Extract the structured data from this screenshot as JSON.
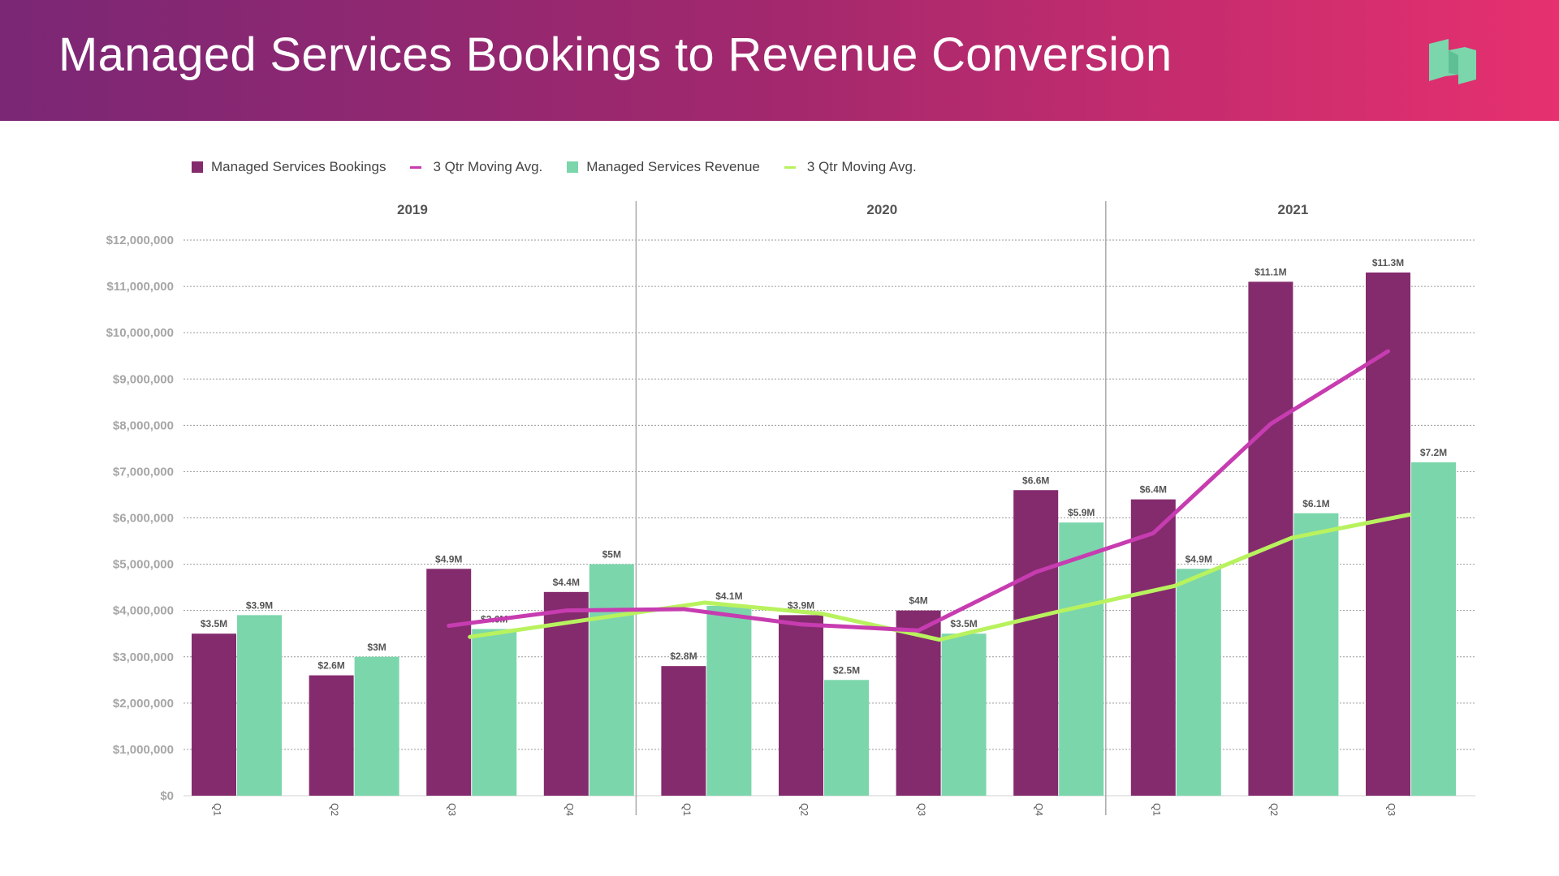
{
  "title": "Managed Services Bookings to Revenue Conversion",
  "logo_icon": "book-logo-icon",
  "colors": {
    "bookings": "#842b6e",
    "bookings_avg": "#c73cb0",
    "revenue": "#7bd6ac",
    "revenue_avg": "#b8f25e",
    "header_start": "#7b2775",
    "header_end": "#e6306f",
    "logo": "#7bd6ac"
  },
  "legend": [
    {
      "label": "Managed Services Bookings",
      "kind": "square",
      "color": "#842b6e"
    },
    {
      "label": "3 Qtr Moving Avg.",
      "kind": "line",
      "color": "#c73cb0"
    },
    {
      "label": "Managed Services Revenue",
      "kind": "square",
      "color": "#7bd6ac"
    },
    {
      "label": "3 Qtr Moving Avg.",
      "kind": "line",
      "color": "#b8f25e"
    }
  ],
  "chart_data": {
    "type": "bar",
    "groups": [
      {
        "label": "2019",
        "categories": [
          "Q1",
          "Q2",
          "Q3",
          "Q4"
        ]
      },
      {
        "label": "2020",
        "categories": [
          "Q1",
          "Q2",
          "Q3",
          "Q4"
        ]
      },
      {
        "label": "2021",
        "categories": [
          "Q1",
          "Q2",
          "Q3"
        ]
      }
    ],
    "categories": [
      "Q1",
      "Q2",
      "Q3",
      "Q4",
      "Q1",
      "Q2",
      "Q3",
      "Q4",
      "Q1",
      "Q2",
      "Q3"
    ],
    "ylim": [
      0,
      12000000
    ],
    "yticks": [
      {
        "value": 0,
        "label": "$0"
      },
      {
        "value": 1000000,
        "label": "$1,000,000"
      },
      {
        "value": 2000000,
        "label": "$2,000,000"
      },
      {
        "value": 3000000,
        "label": "$3,000,000"
      },
      {
        "value": 4000000,
        "label": "$4,000,000"
      },
      {
        "value": 5000000,
        "label": "$5,000,000"
      },
      {
        "value": 6000000,
        "label": "$6,000,000"
      },
      {
        "value": 7000000,
        "label": "$7,000,000"
      },
      {
        "value": 8000000,
        "label": "$8,000,000"
      },
      {
        "value": 9000000,
        "label": "$9,000,000"
      },
      {
        "value": 10000000,
        "label": "$10,000,000"
      },
      {
        "value": 11000000,
        "label": "$11,000,000"
      },
      {
        "value": 12000000,
        "label": "$12,000,000"
      }
    ],
    "grid": true,
    "legend_position": "top-left",
    "series": [
      {
        "name": "Managed Services Bookings",
        "type": "bar",
        "values": [
          3500000,
          2600000,
          4900000,
          4400000,
          2800000,
          3900000,
          4000000,
          6600000,
          6400000,
          11100000,
          11300000
        ],
        "labels": [
          "$3.5M",
          "$2.6M",
          "$4.9M",
          "$4.4M",
          "$2.8M",
          "$3.9M",
          "$4M",
          "$6.6M",
          "$6.4M",
          "$11.1M",
          "$11.3M"
        ]
      },
      {
        "name": "Managed Services Revenue",
        "type": "bar",
        "values": [
          3900000,
          3000000,
          3600000,
          5000000,
          4100000,
          2500000,
          3500000,
          5900000,
          4900000,
          6100000,
          7200000
        ],
        "labels": [
          "$3.9M",
          "$3M",
          "$3.6M",
          "$5M",
          "$4.1M",
          "$2.5M",
          "$3.5M",
          "$5.9M",
          "$4.9M",
          "$6.1M",
          "$7.2M"
        ]
      },
      {
        "name": "3 Qtr Moving Avg.",
        "type": "line",
        "of": "bookings",
        "values": [
          null,
          null,
          3670000,
          4000000,
          4030000,
          3700000,
          3570000,
          4830000,
          5670000,
          8030000,
          9600000
        ]
      },
      {
        "name": "3 Qtr Moving Avg.",
        "type": "line",
        "of": "revenue",
        "values": [
          null,
          null,
          3430000,
          3800000,
          4170000,
          3930000,
          3370000,
          3970000,
          4530000,
          5570000,
          6070000
        ]
      }
    ]
  }
}
